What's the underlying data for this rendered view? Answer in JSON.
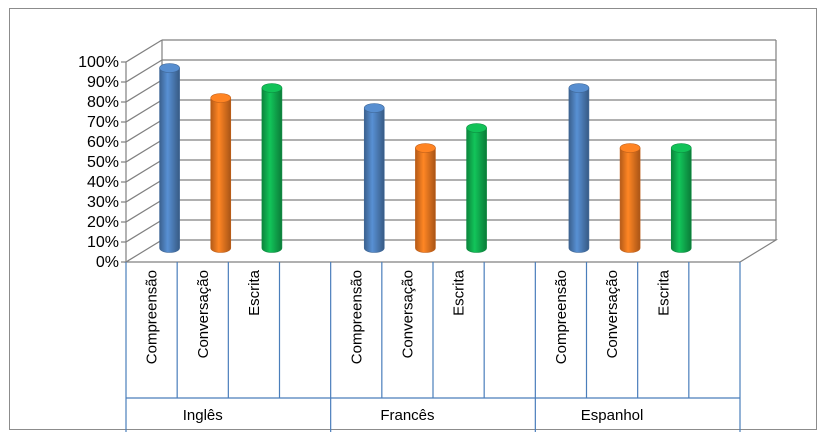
{
  "chart_data": {
    "type": "bar",
    "title": "",
    "xlabel": "",
    "ylabel": "",
    "ylim": [
      0,
      100
    ],
    "y_tick_labels": [
      "0%",
      "10%",
      "20%",
      "30%",
      "40%",
      "50%",
      "60%",
      "70%",
      "80%",
      "90%",
      "100%"
    ],
    "grid": true,
    "three_d": true,
    "groups": [
      {
        "name": "Inglês",
        "bars": [
          {
            "label": "Compreensão",
            "value": 90
          },
          {
            "label": "Conversação",
            "value": 75
          },
          {
            "label": "Escrita",
            "value": 80
          }
        ]
      },
      {
        "name": "Francês",
        "bars": [
          {
            "label": "Compreensão",
            "value": 70
          },
          {
            "label": "Conversação",
            "value": 50
          },
          {
            "label": "Escrita",
            "value": 60
          }
        ]
      },
      {
        "name": "Espanhol",
        "bars": [
          {
            "label": "Compreensão",
            "value": 80
          },
          {
            "label": "Conversação",
            "value": 50
          },
          {
            "label": "Escrita",
            "value": 50
          }
        ]
      }
    ],
    "colors": {
      "Compreensão": "#4f81bd",
      "Conversação": "#f07820",
      "Escrita": "#10b050",
      "grid": "#808080"
    }
  }
}
